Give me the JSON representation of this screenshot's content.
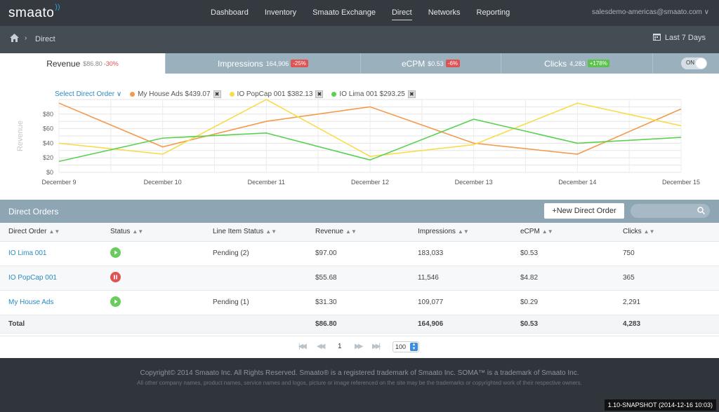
{
  "brand": {
    "logo_text": "smaato",
    "accent": "#2aa8d8"
  },
  "nav": {
    "links": [
      "Dashboard",
      "Inventory",
      "Smaato Exchange",
      "Direct",
      "Networks",
      "Reporting"
    ],
    "active": "Direct",
    "account": "salesdemo-americas@smaato.com"
  },
  "breadcrumb": {
    "current": "Direct"
  },
  "date_range": {
    "label": "Last 7 Days"
  },
  "metric_tabs": {
    "revenue": {
      "label": "Revenue",
      "value": "$86.80",
      "change": "-30%"
    },
    "impressions": {
      "label": "Impressions",
      "value": "164,906",
      "change": "-25%"
    },
    "ecpm": {
      "label": "eCPM",
      "value": "$0.53",
      "change": "-6%"
    },
    "clicks": {
      "label": "Clicks",
      "value": "4,283",
      "change": "+178%"
    },
    "toggle": "ON"
  },
  "legend": {
    "select_label": "Select Direct Order",
    "items": [
      {
        "label": "My House Ads $439.07",
        "color": "#f39a4c"
      },
      {
        "label": "IO PopCap 001 $382.13",
        "color": "#f7dc4d"
      },
      {
        "label": "IO Lima 001 $293.25",
        "color": "#5bd152"
      }
    ],
    "remove_glyph": "✖"
  },
  "chart_data": {
    "type": "line",
    "ylabel": "Revenue",
    "xlabel": "",
    "categories": [
      "December 9",
      "December 10",
      "December 11",
      "December 12",
      "December 13",
      "December 14",
      "December 15"
    ],
    "y_ticks": [
      "$0",
      "$20",
      "$40",
      "$60",
      "$80"
    ],
    "ylim": [
      0,
      100
    ],
    "grid": true,
    "series": [
      {
        "name": "My House Ads",
        "color": "#f39a4c",
        "values": [
          95,
          35,
          70,
          90,
          40,
          25,
          87
        ]
      },
      {
        "name": "IO PopCap 001",
        "color": "#f7dc4d",
        "values": [
          40,
          25,
          100,
          22,
          38,
          95,
          64
        ]
      },
      {
        "name": "IO Lima 001",
        "color": "#5bd152",
        "values": [
          15,
          47,
          54,
          17,
          73,
          40,
          48
        ]
      }
    ]
  },
  "orders": {
    "title": "Direct Orders",
    "new_button": "+New Direct Order",
    "columns": [
      "Direct Order",
      "Status",
      "Line Item Status",
      "Revenue",
      "Impressions",
      "eCPM",
      "Clicks"
    ],
    "rows": [
      {
        "name": "IO Lima 001",
        "status": "play",
        "line_item": "Pending (2)",
        "revenue": "$97.00",
        "impressions": "183,033",
        "ecpm": "$0.53",
        "clicks": "750"
      },
      {
        "name": "IO PopCap 001",
        "status": "pause",
        "line_item": "",
        "revenue": "$55.68",
        "impressions": "11,546",
        "ecpm": "$4.82",
        "clicks": "365"
      },
      {
        "name": "My House Ads",
        "status": "play",
        "line_item": "Pending (1)",
        "revenue": "$31.30",
        "impressions": "109,077",
        "ecpm": "$0.29",
        "clicks": "2,291"
      }
    ],
    "total": {
      "label": "Total",
      "revenue": "$86.80",
      "impressions": "164,906",
      "ecpm": "$0.53",
      "clicks": "4,283"
    },
    "pager": {
      "page": "1",
      "per_page": "100"
    }
  },
  "footer": {
    "line1": "Copyright© 2014 Smaato Inc. All Rights Reserved. Smaato® is a registered trademark of Smaato Inc. SOMA™ is a trademark of Smaato Inc.",
    "line2": "All other company names, product names, service names and logos, picture or image referenced on the site may be the trademarks or copyrighted work of their respective owners.",
    "snapshot": "1.10-SNAPSHOT (2014-12-16 10:03)"
  }
}
